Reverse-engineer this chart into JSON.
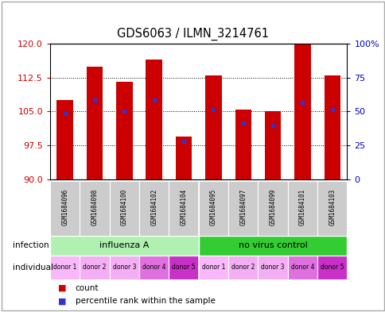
{
  "title": "GDS6063 / ILMN_3214761",
  "samples": [
    "GSM1684096",
    "GSM1684098",
    "GSM1684100",
    "GSM1684102",
    "GSM1684104",
    "GSM1684095",
    "GSM1684097",
    "GSM1684099",
    "GSM1684101",
    "GSM1684103"
  ],
  "bar_values": [
    107.5,
    115.0,
    111.5,
    116.5,
    99.5,
    113.0,
    105.5,
    105.0,
    120.0,
    113.0
  ],
  "blue_marker_values": [
    104.5,
    107.5,
    105.0,
    107.5,
    98.5,
    105.5,
    102.5,
    102.0,
    107.0,
    105.5
  ],
  "ylim": [
    90,
    120
  ],
  "yticks_left": [
    90,
    97.5,
    105,
    112.5,
    120
  ],
  "yticks_right": [
    0,
    25,
    50,
    75,
    100
  ],
  "ytick_labels_right": [
    "0",
    "25",
    "50",
    "75",
    "100%"
  ],
  "bar_color": "#cc0000",
  "blue_color": "#3333cc",
  "infection_groups": [
    {
      "label": "influenza A",
      "span": [
        0,
        5
      ],
      "color": "#b0f0b0"
    },
    {
      "label": "no virus control",
      "span": [
        5,
        10
      ],
      "color": "#33cc33"
    }
  ],
  "individual_labels": [
    "donor 1",
    "donor 2",
    "donor 3",
    "donor 4",
    "donor 5",
    "donor 1",
    "donor 2",
    "donor 3",
    "donor 4",
    "donor 5"
  ],
  "ind_colors": [
    "#f9b8f9",
    "#f4aef4",
    "#f4aef4",
    "#e070e0",
    "#c830c8",
    "#f9b8f9",
    "#f4aef4",
    "#f4aef4",
    "#e070e0",
    "#c830c8"
  ],
  "bar_width": 0.55,
  "tick_color_left": "#cc0000",
  "tick_color_right": "#0000cc",
  "sample_box_color": "#cccccc",
  "fig_width": 4.85,
  "fig_height": 3.93,
  "dpi": 100
}
